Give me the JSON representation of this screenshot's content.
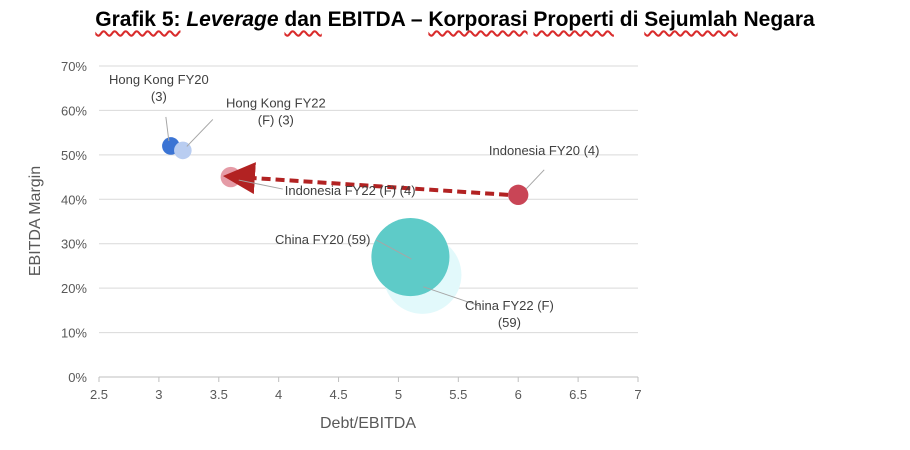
{
  "title": {
    "part1": "Grafik 5:",
    "part2": "Leverage",
    "part3": "dan",
    "part4": "EBITDA –",
    "part5": "Korporasi",
    "part6": "Properti",
    "part7": "di",
    "part8": "Sejumlah",
    "part9": "Negara"
  },
  "chart_data": {
    "type": "scatter",
    "title": "Grafik 5: Leverage dan EBITDA – Korporasi Properti di Sejumlah Negara",
    "xlabel": "Debt/EBITDA",
    "ylabel": "EBITDA Margin",
    "xlim": [
      2.5,
      7
    ],
    "ylim": [
      0,
      70
    ],
    "x_ticks": [
      "2.5",
      "3",
      "3.5",
      "4",
      "4.5",
      "5",
      "5.5",
      "6",
      "6.5",
      "7"
    ],
    "y_ticks": [
      "0%",
      "10%",
      "20%",
      "30%",
      "40%",
      "50%",
      "60%",
      "70%"
    ],
    "grid": "horizontal",
    "points": [
      {
        "name": "china-fy22",
        "label": [
          "China FY22 (F)",
          "(59)"
        ],
        "x": 5.2,
        "y": 23,
        "size": 59,
        "color": "#e2f9fb"
      },
      {
        "name": "china-fy20",
        "label": [
          "China FY20 (59)"
        ],
        "x": 5.1,
        "y": 27,
        "size": 59,
        "color": "#5ecbc8"
      },
      {
        "name": "hongkong-fy20",
        "label": [
          "Hong Kong FY20",
          "(3)"
        ],
        "x": 3.1,
        "y": 52,
        "size": 3,
        "color": "#3b74d4"
      },
      {
        "name": "hongkong-fy22",
        "label": [
          "Hong Kong FY22",
          "(F) (3)"
        ],
        "x": 3.2,
        "y": 51,
        "size": 3,
        "color": "#b9cdf1"
      },
      {
        "name": "indonesia-fy22",
        "label": [
          "Indonesia FY22 (F) (4)"
        ],
        "x": 3.6,
        "y": 45,
        "size": 4,
        "color": "#e59ba6"
      },
      {
        "name": "indonesia-fy20",
        "label": [
          "Indonesia FY20 (4)"
        ],
        "x": 6.0,
        "y": 41,
        "size": 4,
        "color": "#c94556"
      }
    ],
    "arrow": {
      "from": "indonesia-fy20",
      "to": "indonesia-fy22",
      "color": "#b22222"
    }
  }
}
